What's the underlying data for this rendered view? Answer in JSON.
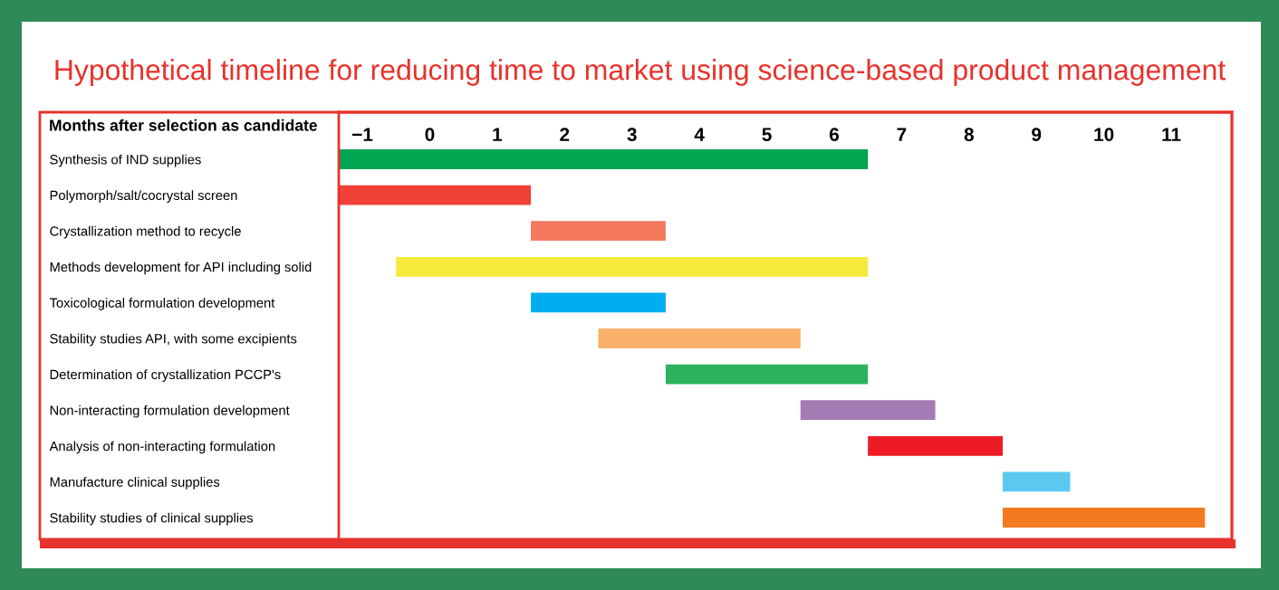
{
  "chart_data": {
    "type": "bar",
    "orientation": "horizontal",
    "title": "Hypothetical timeline for reducing time to market using science-based product management",
    "xlabel": "Months after selection as candidate",
    "categories": [
      "Synthesis of IND supplies",
      "Polymorph/salt/cocrystal screen",
      "Crystallization method to recycle",
      "Methods development for API including solid",
      "Toxicological formulation development",
      "Stability studies API, with some excipients",
      "Determination of crystallization PCCP's",
      "Non-interacting formulation development",
      "Analysis of non-interacting formulation",
      "Manufacture clinical supplies",
      "Stability studies of clinical supplies"
    ],
    "base": [
      -1.35,
      -1.35,
      1.5,
      -0.5,
      1.5,
      2.5,
      3.5,
      5.5,
      6.5,
      8.5,
      8.5
    ],
    "values": [
      7.85,
      2.85,
      2,
      7,
      2,
      3,
      3,
      2,
      2,
      1,
      3
    ],
    "colors": [
      "#00a651",
      "#ef4136",
      "#f4795d",
      "#f7ea3a",
      "#00aeef",
      "#f9b06b",
      "#2db35d",
      "#a57bb5",
      "#ed1c24",
      "#5bc8f0",
      "#f47a20"
    ],
    "xlim": [
      -1.35,
      11.9
    ],
    "xticks": [
      {
        "value": -1,
        "label": "−1"
      },
      0,
      1,
      2,
      3,
      4,
      5,
      6,
      7,
      8,
      9,
      10,
      11
    ]
  }
}
